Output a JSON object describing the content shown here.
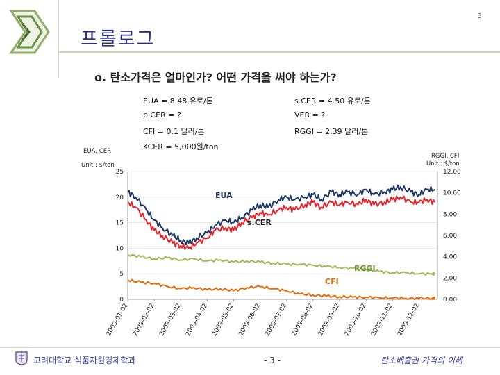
{
  "header": {
    "page_number": "3",
    "title": "프롤로그"
  },
  "subtitle": "o. 탄소가격은 얼마인가? 어떤 가격을 써야 하는가?",
  "prices": {
    "eua": "EUA = 8.48 유로/톤",
    "scer": "s.CER = 4.50 유로/톤",
    "pcer": "p.CER = ?",
    "ver": "VER = ?",
    "cfi": "CFI = 0.1 달러/톤",
    "rggi": "RGGI = 2.39 달러/톤",
    "kcer": "KCER = 5,000원/ton"
  },
  "axis_notes": {
    "left_series": "EUA, CER",
    "left_unit": "Unit : $/ton",
    "right_series": "RGGI, CFI",
    "right_unit": "Unit : $/ton"
  },
  "footer": {
    "university": "고려대학교 식품자원경제학과",
    "page": "- 3 -",
    "topic": "탄소배출권 가격의 이해"
  },
  "chart_data": {
    "type": "line",
    "title": "",
    "x_ticks": [
      "2009-01-02",
      "2009-02-02",
      "2009-03-02",
      "2009-04-02",
      "2009-05-02",
      "2009-06-02",
      "2009-07-02",
      "2009-08-02",
      "2009-09-02",
      "2009-10-02",
      "2009-11-02",
      "2009-12-02"
    ],
    "y_left": {
      "ticks": [
        "0",
        "5",
        "10",
        "15",
        "20",
        "25"
      ],
      "range": [
        0,
        25
      ]
    },
    "y_right": {
      "ticks": [
        "0.00",
        "2.00",
        "4.00",
        "6.00",
        "8.00",
        "10.00",
        "12.00"
      ],
      "range": [
        0,
        12
      ]
    },
    "series": [
      {
        "name": "EUA",
        "axis": "left",
        "color": "#1f3864",
        "x": [
          0,
          0.3,
          0.7,
          1.0,
          1.3,
          1.7,
          2.0,
          2.3,
          2.6,
          3.0,
          3.3,
          3.7,
          4.0,
          4.3,
          4.7,
          5.0,
          5.3,
          5.7,
          6.0,
          6.3,
          6.7,
          7.0,
          7.3,
          7.7,
          8.0,
          8.3,
          8.7,
          9.0,
          9.3,
          9.7,
          10.0,
          10.3,
          10.7,
          11.0,
          11.3,
          11.6
        ],
        "values": [
          21,
          20,
          17.5,
          15.5,
          14,
          12.5,
          11.5,
          11,
          12,
          13,
          14.5,
          15.5,
          15,
          16,
          17.5,
          18.5,
          18,
          19.5,
          20,
          19.5,
          20,
          20.5,
          19.5,
          21,
          20.5,
          21,
          20.5,
          21.5,
          20.5,
          21,
          21.5,
          22,
          21,
          20.5,
          21.5,
          21.5
        ]
      },
      {
        "name": "s.CER",
        "axis": "left",
        "color": "#e3242b",
        "x": [
          0,
          0.3,
          0.7,
          1.0,
          1.3,
          1.7,
          2.0,
          2.3,
          2.6,
          3.0,
          3.3,
          3.7,
          4.0,
          4.3,
          4.7,
          5.0,
          5.3,
          5.7,
          6.0,
          6.3,
          6.7,
          7.0,
          7.3,
          7.7,
          8.0,
          8.3,
          8.7,
          9.0,
          9.3,
          9.7,
          10.0,
          10.3,
          10.7,
          11.0,
          11.3,
          11.6
        ],
        "values": [
          19,
          18,
          15.5,
          13.5,
          12.5,
          11,
          10.5,
          10,
          11,
          12,
          13.5,
          14,
          13.5,
          15,
          16,
          17,
          16.5,
          17.5,
          18,
          17.5,
          18.5,
          19,
          18,
          19,
          18.5,
          19,
          18.5,
          19.5,
          18.5,
          19,
          19.5,
          20,
          19,
          19,
          19.5,
          19
        ]
      },
      {
        "name": "RGGI",
        "axis": "right",
        "color": "#9bbb59",
        "x": [
          0,
          0.5,
          1.0,
          1.5,
          2.0,
          2.5,
          3.0,
          3.5,
          4.0,
          4.5,
          5.0,
          5.5,
          6.0,
          6.5,
          7.0,
          7.5,
          8.0,
          8.5,
          9.0,
          9.5,
          10.0,
          10.5,
          11.0,
          11.5,
          11.6
        ],
        "values": [
          4.2,
          4.0,
          3.8,
          3.9,
          3.7,
          3.8,
          3.6,
          3.7,
          3.5,
          3.6,
          3.5,
          3.4,
          3.3,
          3.3,
          3.2,
          3.1,
          3.0,
          2.9,
          2.8,
          2.6,
          2.5,
          2.5,
          2.4,
          2.4,
          2.4
        ]
      },
      {
        "name": "CFI",
        "axis": "right",
        "color": "#e46c0a",
        "x": [
          0,
          0.5,
          1.0,
          1.5,
          2.0,
          2.5,
          3.0,
          3.5,
          4.0,
          4.5,
          5.0,
          5.5,
          6.0,
          6.5,
          7.0,
          7.5,
          8.0,
          8.5,
          9.0,
          9.5,
          10.0,
          10.5,
          11.0,
          11.5,
          11.6
        ],
        "values": [
          1.8,
          1.6,
          1.5,
          1.2,
          1.0,
          1.1,
          0.9,
          1.0,
          0.8,
          1.1,
          1.2,
          1.0,
          0.8,
          0.5,
          0.4,
          0.3,
          0.25,
          0.2,
          0.2,
          0.15,
          0.12,
          0.1,
          0.1,
          0.1,
          0.1
        ]
      }
    ],
    "annotations": [
      "EUA",
      "s.CER",
      "RGGI",
      "CFI"
    ]
  }
}
